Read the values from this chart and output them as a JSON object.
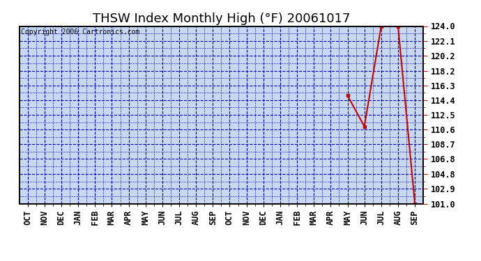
{
  "title": "THSW Index Monthly High (°F) 20061017",
  "copyright": "Copyright 2006 Cartronics.com",
  "x_labels": [
    "OCT",
    "NOV",
    "DEC",
    "JAN",
    "FEB",
    "MAR",
    "APR",
    "MAY",
    "JUN",
    "JUL",
    "AUG",
    "SEP",
    "OCT",
    "NOV",
    "DEC",
    "JAN",
    "FEB",
    "MAR",
    "APR",
    "MAY",
    "JUN",
    "JUL",
    "AUG",
    "SEP"
  ],
  "n_points": 24,
  "data_x": [
    19,
    20,
    21,
    22,
    23
  ],
  "data_y": [
    115.0,
    111.0,
    124.0,
    124.0,
    101.0
  ],
  "ymin": 101.0,
  "ymax": 124.0,
  "yticks": [
    101.0,
    102.9,
    104.8,
    106.8,
    108.7,
    110.6,
    112.5,
    114.4,
    116.3,
    118.2,
    120.2,
    122.1,
    124.0
  ],
  "line_color": "#cc0000",
  "marker_color": "#cc0000",
  "grid_color": "#0000bb",
  "plot_bg": "#c8d8f0",
  "fig_bg": "#ffffff",
  "title_fontsize": 13,
  "copyright_fontsize": 7,
  "tick_fontsize": 8.5,
  "right_tick_color": "#cc0000"
}
